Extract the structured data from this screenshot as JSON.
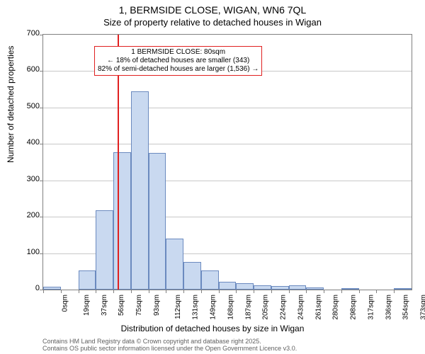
{
  "title_line1": "1, BERMSIDE CLOSE, WIGAN, WN6 7QL",
  "title_line2": "Size of property relative to detached houses in Wigan",
  "xaxis_title": "Distribution of detached houses by size in Wigan",
  "yaxis_title": "Number of detached properties",
  "credits_line1": "Contains HM Land Registry data © Crown copyright and database right 2025.",
  "credits_line2": "Contains OS public sector information licensed under the Open Government Licence v3.0.",
  "annotation": {
    "line1": "1 BERMSIDE CLOSE: 80sqm",
    "line2": "← 18% of detached houses are smaller (343)",
    "line3": "82% of semi-detached houses are larger (1,536) →"
  },
  "chart": {
    "type": "histogram",
    "background_color": "#ffffff",
    "border_color": "#808080",
    "grid_color": "#c8c8c8",
    "bar_fill": "#c9d9f0",
    "bar_border": "#6b8abf",
    "refline_color": "#e02020",
    "annot_border": "#e02020",
    "title_fontsize": 14,
    "subtitle_fontsize": 13,
    "axis_label_fontsize": 12,
    "tick_fontsize": 11,
    "xtick_fontsize": 10,
    "annot_fontsize": 10,
    "credits_fontsize": 9,
    "ylim": [
      0,
      700
    ],
    "yticks": [
      0,
      100,
      200,
      300,
      400,
      500,
      600,
      700
    ],
    "reference_value": 80,
    "xtick_labels": [
      "0sqm",
      "19sqm",
      "37sqm",
      "56sqm",
      "75sqm",
      "93sqm",
      "112sqm",
      "131sqm",
      "149sqm",
      "168sqm",
      "187sqm",
      "205sqm",
      "224sqm",
      "243sqm",
      "261sqm",
      "280sqm",
      "298sqm",
      "317sqm",
      "336sqm",
      "354sqm",
      "373sqm"
    ],
    "bars": [
      {
        "x": 0,
        "value": 8
      },
      {
        "x": 19,
        "value": 0
      },
      {
        "x": 37,
        "value": 52
      },
      {
        "x": 56,
        "value": 218
      },
      {
        "x": 75,
        "value": 378
      },
      {
        "x": 93,
        "value": 545
      },
      {
        "x": 112,
        "value": 375
      },
      {
        "x": 131,
        "value": 140
      },
      {
        "x": 149,
        "value": 75
      },
      {
        "x": 168,
        "value": 52
      },
      {
        "x": 187,
        "value": 22
      },
      {
        "x": 205,
        "value": 18
      },
      {
        "x": 224,
        "value": 12
      },
      {
        "x": 243,
        "value": 10
      },
      {
        "x": 261,
        "value": 12
      },
      {
        "x": 280,
        "value": 5
      },
      {
        "x": 298,
        "value": 0
      },
      {
        "x": 317,
        "value": 4
      },
      {
        "x": 336,
        "value": 0
      },
      {
        "x": 354,
        "value": 0
      },
      {
        "x": 373,
        "value": 3
      }
    ]
  }
}
